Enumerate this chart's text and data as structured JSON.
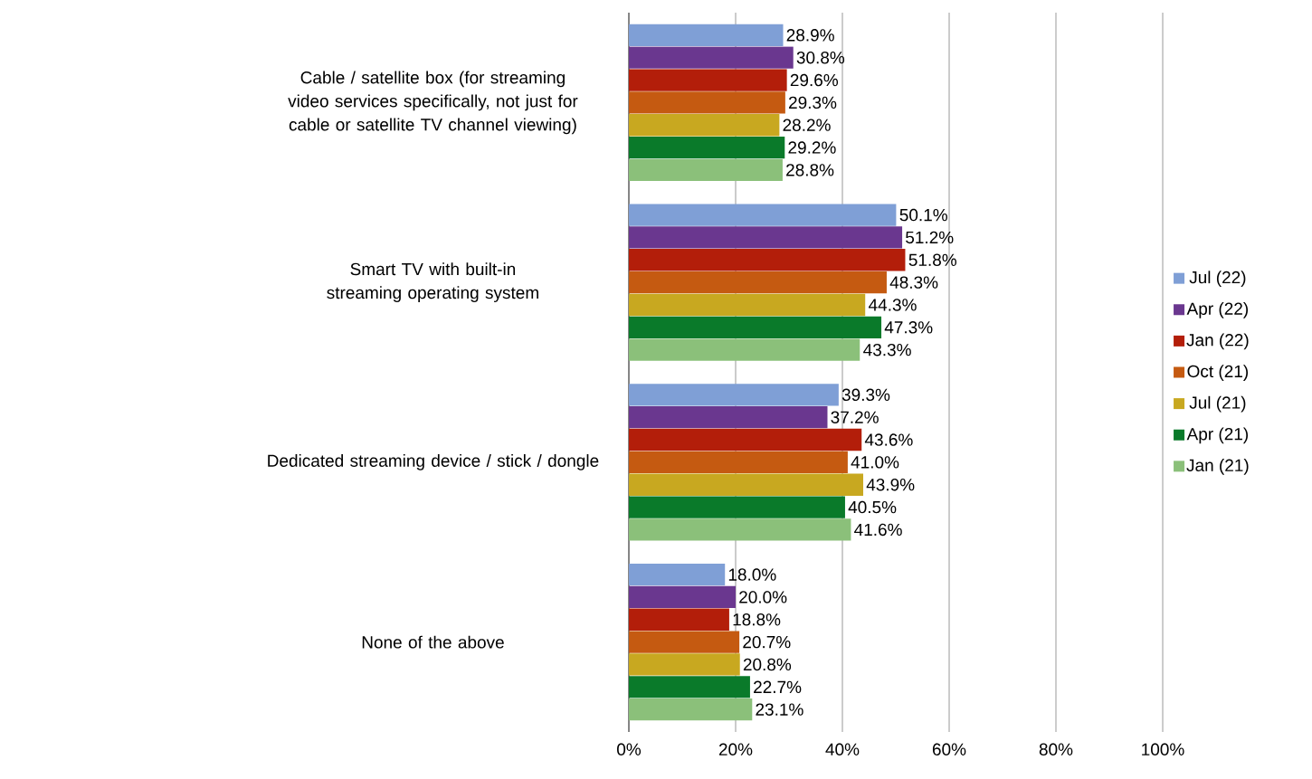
{
  "chart_data": {
    "type": "bar",
    "orientation": "horizontal",
    "categories": [
      "Cable / satellite box (for streaming video services specifically, not just for cable or satellite TV channel viewing)",
      "Smart TV with built-in streaming operating system",
      "Dedicated streaming device / stick / dongle",
      "None of the above"
    ],
    "series": [
      {
        "name": "Jul (22)",
        "color": "#7f9fd6",
        "values": [
          28.9,
          50.1,
          39.3,
          18.0
        ],
        "value_labels": [
          "28.9%",
          "50.1%",
          "39.3%",
          "18.0%"
        ]
      },
      {
        "name": "Apr (22)",
        "color": "#6a378f",
        "values": [
          30.8,
          51.2,
          37.2,
          20.0
        ],
        "value_labels": [
          "30.8%",
          "51.2%",
          "37.2%",
          "20.0%"
        ]
      },
      {
        "name": "Jan (22)",
        "color": "#b31e0a",
        "values": [
          29.6,
          51.8,
          43.6,
          18.8
        ],
        "value_labels": [
          "29.6%",
          "51.8%",
          "43.6%",
          "18.8%"
        ]
      },
      {
        "name": "Oct (21)",
        "color": "#c55a11",
        "values": [
          29.3,
          48.3,
          41.0,
          20.7
        ],
        "value_labels": [
          "29.3%",
          "48.3%",
          "41.0%",
          "20.7%"
        ]
      },
      {
        "name": "Jul (21)",
        "color": "#c8a820",
        "values": [
          28.2,
          44.3,
          43.9,
          20.8
        ],
        "value_labels": [
          "28.2%",
          "44.3%",
          "43.9%",
          "20.8%"
        ]
      },
      {
        "name": "Apr (21)",
        "color": "#0a7a2a",
        "values": [
          29.2,
          47.3,
          40.5,
          22.7
        ],
        "value_labels": [
          "29.2%",
          "47.3%",
          "40.5%",
          "22.7%"
        ]
      },
      {
        "name": "Jan (21)",
        "color": "#8bc07a",
        "values": [
          28.8,
          43.3,
          41.6,
          23.1
        ],
        "value_labels": [
          "28.8%",
          "43.3%",
          "41.6%",
          "23.1%"
        ]
      }
    ],
    "xlim": [
      0,
      100
    ],
    "xticks": [
      {
        "value": 0,
        "label": "0%"
      },
      {
        "value": 20,
        "label": "20%"
      },
      {
        "value": 40,
        "label": "40%"
      },
      {
        "value": 60,
        "label": "60%"
      },
      {
        "value": 80,
        "label": "80%"
      },
      {
        "value": 100,
        "label": "100%"
      }
    ],
    "grid": "x",
    "legend": "right"
  }
}
